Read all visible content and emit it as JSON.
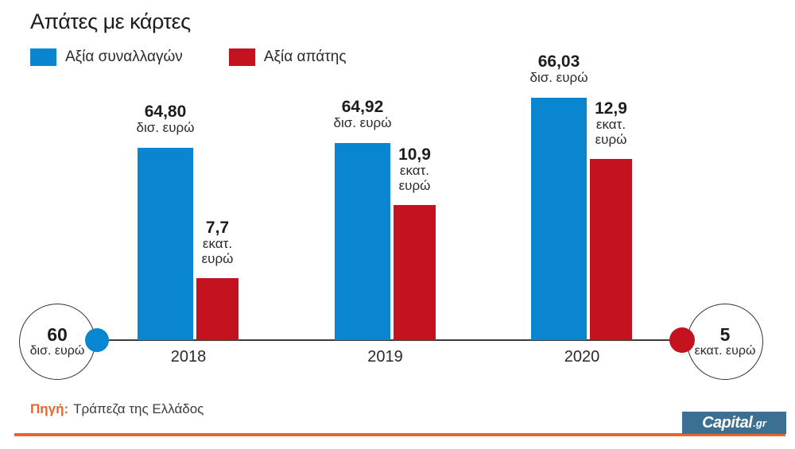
{
  "title": "Απάτες με κάρτες",
  "colors": {
    "blue": "#0a86d1",
    "red": "#c4131f",
    "orange": "#e9662b",
    "logo_bg": "#3b7093",
    "axis_line": "#3d3d3d"
  },
  "legend": {
    "items": [
      {
        "label": "Αξία συναλλαγών",
        "color": "#0a86d1"
      },
      {
        "label": "Αξία απάτης",
        "color": "#c4131f"
      }
    ]
  },
  "axis": {
    "left_circle": {
      "value": "60",
      "unit": "δισ. ευρώ"
    },
    "right_circle": {
      "value": "5",
      "unit": "εκατ. ευρώ"
    }
  },
  "footer": {
    "source_label": "Πηγή:",
    "source_text": "Τράπεζα της Ελλάδος",
    "logo": {
      "main": "Capital",
      "suffix": ".gr"
    }
  },
  "chart_data": {
    "type": "bar",
    "title": "Απάτες με κάρτες",
    "categories": [
      "2018",
      "2019",
      "2020"
    ],
    "series": [
      {
        "name": "Αξία συναλλαγών",
        "color": "#0a86d1",
        "unit": "δισ. ευρώ",
        "unit_lines": [
          "δισ. ευρώ"
        ],
        "baseline": 60,
        "values": [
          64.8,
          64.92,
          66.03
        ],
        "value_labels": [
          "64,80",
          "64,92",
          "66,03"
        ]
      },
      {
        "name": "Αξία απάτης",
        "color": "#c4131f",
        "unit": "εκατ. ευρώ",
        "unit_lines": [
          "εκατ.",
          "ευρώ"
        ],
        "baseline": 5,
        "values": [
          7.7,
          10.9,
          12.9
        ],
        "value_labels": [
          "7,7",
          "10,9",
          "12,9"
        ]
      }
    ],
    "legend_position": "top-left",
    "grid": false,
    "axis_note": "blue bars measured from 60 δισ. ευρώ baseline, red bars from 5 εκατ. ευρώ baseline"
  }
}
